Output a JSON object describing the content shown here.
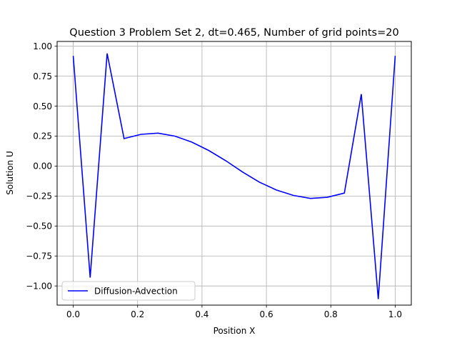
{
  "chart_data": {
    "type": "line",
    "title": "Question 3 Problem Set 2, dt=0.465, Number of grid points=20",
    "xlabel": "Position X",
    "ylabel": "Solution U",
    "xlim": [
      -0.05,
      1.05
    ],
    "ylim": [
      -1.16,
      1.04
    ],
    "grid": true,
    "legend_position": "lower-left",
    "x_ticks": [
      0.0,
      0.2,
      0.4,
      0.6,
      0.8,
      1.0
    ],
    "x_tick_labels": [
      "0.0",
      "0.2",
      "0.4",
      "0.6",
      "0.8",
      "1.0"
    ],
    "y_ticks": [
      -1.0,
      -0.75,
      -0.5,
      -0.25,
      0.0,
      0.25,
      0.5,
      0.75,
      1.0
    ],
    "y_tick_labels": [
      "−1.00",
      "−0.75",
      "−0.50",
      "−0.25",
      "0.00",
      "0.25",
      "0.50",
      "0.75",
      "1.00"
    ],
    "series": [
      {
        "name": "Diffusion-Advection",
        "color": "#0000ff",
        "x": [
          0.0,
          0.0526,
          0.1053,
          0.1579,
          0.2105,
          0.2632,
          0.3158,
          0.3684,
          0.4211,
          0.4737,
          0.5263,
          0.5789,
          0.6316,
          0.6842,
          0.7368,
          0.7895,
          0.8421,
          0.8947,
          0.9474,
          1.0
        ],
        "y": [
          0.92,
          -0.93,
          0.94,
          0.23,
          0.265,
          0.275,
          0.25,
          0.2,
          0.13,
          0.045,
          -0.05,
          -0.135,
          -0.2,
          -0.245,
          -0.27,
          -0.26,
          -0.225,
          0.6,
          -1.11,
          0.92
        ]
      }
    ]
  }
}
